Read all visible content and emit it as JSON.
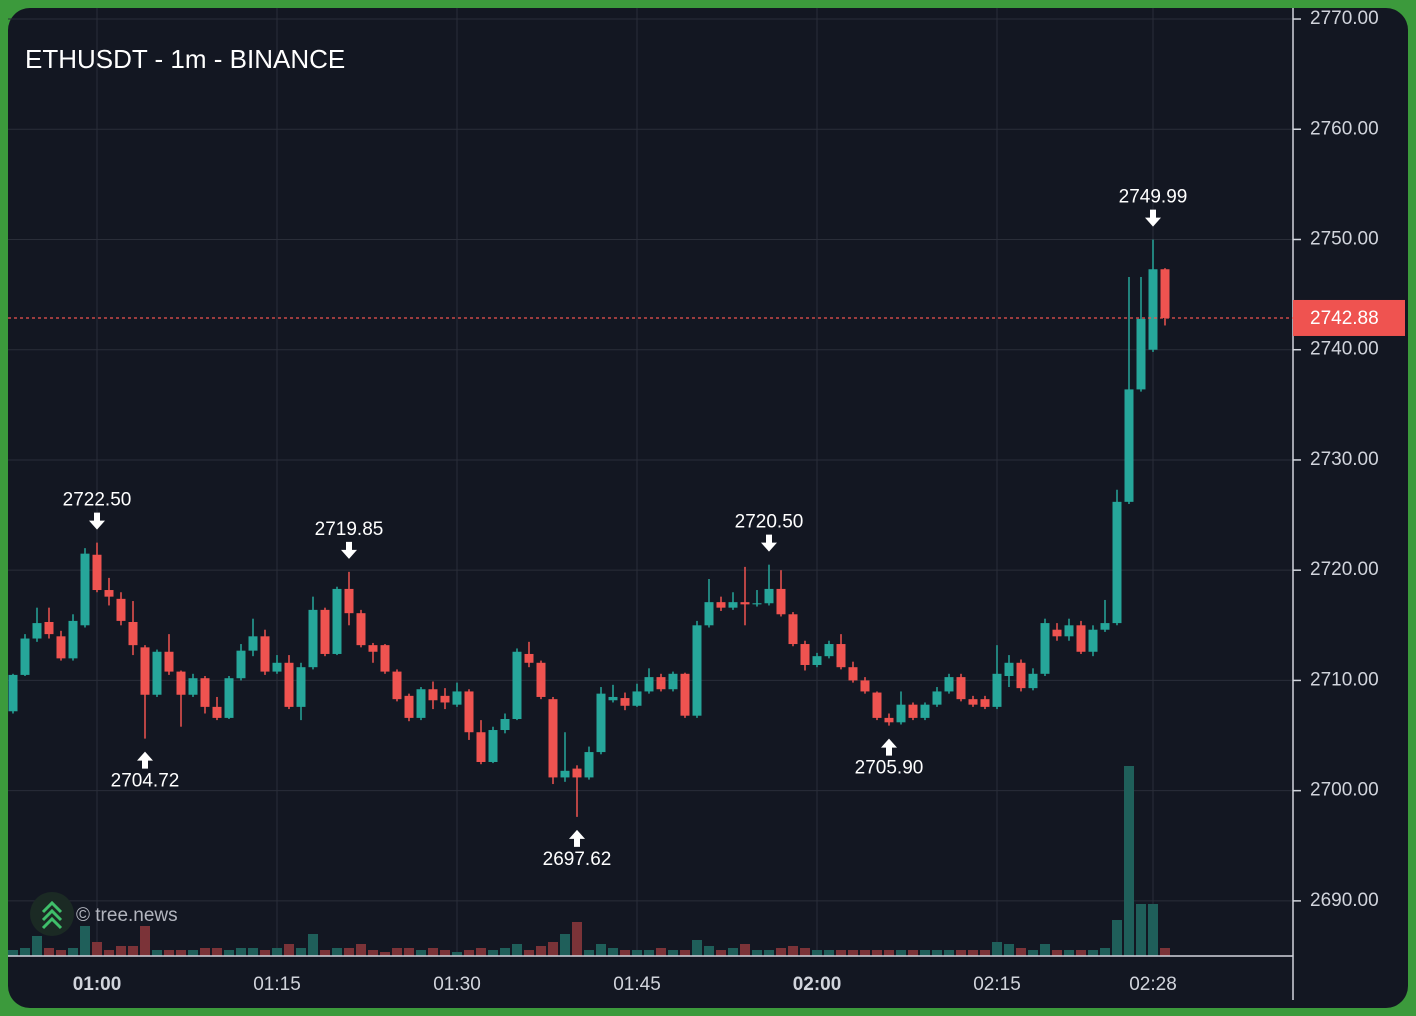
{
  "chart_data": {
    "type": "candlestick",
    "title": "ETHUSDT - 1m - BINANCE",
    "watermark": "© tree.news",
    "x": [
      null,
      null,
      null,
      null,
      null,
      null,
      null,
      "01:00",
      null,
      null,
      null,
      null,
      null,
      null,
      null,
      null,
      null,
      null,
      null,
      null,
      null,
      null,
      "01:15",
      null,
      null,
      null,
      null,
      null,
      null,
      null,
      null,
      null,
      null,
      null,
      null,
      null,
      null,
      "01:30",
      null,
      null,
      null,
      null,
      null,
      null,
      null,
      null,
      null,
      null,
      null,
      null,
      null,
      null,
      "01:45",
      null,
      null,
      null,
      null,
      null,
      null,
      null,
      null,
      null,
      null,
      null,
      null,
      null,
      null,
      "02:00",
      null,
      null,
      null,
      null,
      null,
      null,
      null,
      null,
      null,
      null,
      null,
      null,
      null,
      null,
      "02:15",
      null,
      null,
      null,
      null,
      null,
      null,
      null,
      null,
      null,
      null,
      null,
      null,
      "02:28",
      null
    ],
    "open": [
      2707.2,
      2710.5,
      2713.8,
      2715.3,
      2714.0,
      2712.0,
      2715.0,
      2721.4,
      2718.2,
      2717.4,
      2715.3,
      2713.0,
      2708.7,
      2712.6,
      2710.8,
      2708.7,
      2710.2,
      2707.6,
      2706.6,
      2710.2,
      2712.7,
      2714.0,
      2710.8,
      2711.6,
      2707.6,
      2711.2,
      2716.4,
      2712.4,
      2718.3,
      2716.1,
      2713.2,
      2713.2,
      2710.8,
      2708.6,
      2706.6,
      2709.2,
      2708.6,
      2707.8,
      2709.0,
      2705.3,
      2702.6,
      2705.5,
      2706.5,
      2712.4,
      2711.6,
      2708.3,
      2701.2,
      2702.0,
      2701.2,
      2703.5,
      2708.2,
      2708.4,
      2707.7,
      2709.0,
      2710.3,
      2709.2,
      2710.6,
      2706.8,
      2715.0,
      2717.1,
      2716.6,
      2717.1,
      2716.9,
      2717.0,
      2718.3,
      2716.0,
      2713.3,
      2711.4,
      2712.2,
      2713.3,
      2711.2,
      2710.0,
      2708.9,
      2706.6,
      2706.2,
      2707.8,
      2706.6,
      2707.8,
      2709.0,
      2710.3,
      2708.3,
      2708.3,
      2707.6,
      2710.4,
      2711.6,
      2709.3,
      2710.6,
      2714.6,
      2714.0,
      2715.0,
      2712.6,
      2714.6,
      2715.2,
      2726.2,
      2736.4,
      2740.0,
      2747.3
    ],
    "high": [
      2710.6,
      2714.2,
      2716.6,
      2716.6,
      2714.5,
      2716.0,
      2722.0,
      2722.5,
      2719.3,
      2718.0,
      2717.2,
      2713.2,
      2712.8,
      2714.2,
      2710.9,
      2710.6,
      2710.4,
      2708.5,
      2710.4,
      2713.3,
      2715.6,
      2714.6,
      2712.3,
      2712.3,
      2711.6,
      2717.6,
      2716.6,
      2718.5,
      2719.85,
      2716.4,
      2713.4,
      2713.3,
      2711.0,
      2708.8,
      2709.4,
      2709.9,
      2709.3,
      2709.8,
      2709.2,
      2706.4,
      2705.8,
      2707.0,
      2712.9,
      2713.5,
      2711.8,
      2708.5,
      2705.3,
      2702.3,
      2704.0,
      2709.4,
      2709.6,
      2708.9,
      2709.7,
      2711.1,
      2710.6,
      2710.8,
      2710.7,
      2715.4,
      2719.2,
      2717.6,
      2718.0,
      2720.3,
      2718.2,
      2720.5,
      2720.0,
      2716.2,
      2713.6,
      2712.5,
      2713.6,
      2714.2,
      2711.7,
      2710.3,
      2709.0,
      2707.0,
      2709.0,
      2708.0,
      2708.0,
      2709.4,
      2710.6,
      2710.6,
      2708.6,
      2708.6,
      2713.2,
      2712.3,
      2711.9,
      2711.1,
      2715.6,
      2715.2,
      2715.6,
      2715.4,
      2715.0,
      2717.3,
      2727.3,
      2746.6,
      2746.6,
      2749.99,
      2747.4
    ],
    "low": [
      2707.0,
      2710.4,
      2713.5,
      2713.8,
      2711.8,
      2711.8,
      2714.8,
      2718.0,
      2716.8,
      2715.0,
      2712.3,
      2704.72,
      2708.5,
      2710.5,
      2705.8,
      2708.5,
      2707.0,
      2706.4,
      2706.5,
      2710.0,
      2712.2,
      2710.5,
      2710.6,
      2707.4,
      2706.4,
      2711.0,
      2712.2,
      2712.3,
      2715.0,
      2713.0,
      2711.6,
      2710.6,
      2708.1,
      2706.3,
      2706.4,
      2707.4,
      2707.4,
      2707.6,
      2704.6,
      2702.4,
      2702.5,
      2705.2,
      2706.4,
      2711.2,
      2708.3,
      2700.6,
      2700.8,
      2697.62,
      2701.0,
      2703.3,
      2708.0,
      2707.3,
      2707.6,
      2708.8,
      2709.0,
      2709.0,
      2706.6,
      2706.6,
      2714.8,
      2716.3,
      2716.4,
      2715.0,
      2716.7,
      2716.8,
      2715.8,
      2713.1,
      2710.9,
      2711.2,
      2712.0,
      2711.0,
      2709.8,
      2708.8,
      2706.4,
      2705.9,
      2706.0,
      2706.4,
      2706.4,
      2707.6,
      2708.8,
      2708.1,
      2707.6,
      2707.4,
      2707.4,
      2709.4,
      2709.0,
      2709.1,
      2710.4,
      2713.6,
      2713.6,
      2712.4,
      2712.2,
      2714.4,
      2715.0,
      2726.0,
      2736.2,
      2739.8,
      2742.2
    ],
    "close": [
      2710.5,
      2713.8,
      2715.2,
      2714.2,
      2712.0,
      2715.4,
      2721.5,
      2718.2,
      2717.6,
      2715.4,
      2713.2,
      2708.7,
      2712.6,
      2710.8,
      2708.7,
      2710.2,
      2707.6,
      2706.6,
      2710.2,
      2712.7,
      2714.0,
      2710.8,
      2711.6,
      2707.6,
      2711.2,
      2716.4,
      2712.4,
      2718.3,
      2716.1,
      2713.2,
      2712.6,
      2710.8,
      2708.3,
      2706.6,
      2709.2,
      2708.2,
      2708.0,
      2709.0,
      2705.3,
      2702.6,
      2705.5,
      2706.5,
      2712.6,
      2711.6,
      2708.5,
      2701.2,
      2701.8,
      2701.2,
      2703.5,
      2708.8,
      2708.5,
      2707.7,
      2709.0,
      2710.3,
      2709.2,
      2710.6,
      2706.8,
      2715.0,
      2717.1,
      2716.6,
      2717.1,
      2716.9,
      2717.0,
      2718.3,
      2716.0,
      2713.3,
      2711.4,
      2712.2,
      2713.3,
      2711.2,
      2710.0,
      2709.0,
      2706.6,
      2706.2,
      2707.8,
      2706.6,
      2707.8,
      2709.0,
      2710.3,
      2708.3,
      2707.8,
      2707.6,
      2710.6,
      2711.6,
      2709.3,
      2710.6,
      2715.2,
      2714.0,
      2715.0,
      2712.6,
      2714.6,
      2715.2,
      2726.2,
      2736.4,
      2742.8,
      2747.3,
      2742.88
    ],
    "volume": [
      6,
      8,
      20,
      8,
      6,
      8,
      30,
      14,
      6,
      10,
      10,
      30,
      6,
      6,
      6,
      6,
      8,
      8,
      6,
      8,
      8,
      6,
      8,
      12,
      8,
      22,
      6,
      8,
      8,
      12,
      6,
      4,
      8,
      8,
      6,
      8,
      6,
      4,
      6,
      8,
      6,
      8,
      12,
      6,
      10,
      14,
      22,
      34,
      6,
      12,
      8,
      6,
      6,
      6,
      8,
      6,
      6,
      16,
      10,
      6,
      8,
      12,
      6,
      6,
      8,
      10,
      8,
      6,
      6,
      6,
      6,
      6,
      6,
      6,
      6,
      6,
      6,
      6,
      6,
      6,
      6,
      6,
      14,
      12,
      8,
      6,
      12,
      6,
      6,
      6,
      6,
      8,
      36,
      190,
      52,
      52,
      8
    ],
    "last_price_label": "2742.88",
    "annotations": [
      {
        "value": 2722.5,
        "label": "2722.50"
      },
      {
        "value": 2704.72,
        "label": "2704.72"
      },
      {
        "value": 2719.85,
        "label": "2719.85"
      },
      {
        "value": 2697.62,
        "label": "2697.62"
      },
      {
        "value": 2720.5,
        "label": "2720.50"
      },
      {
        "value": 2705.9,
        "label": "2705.90"
      },
      {
        "value": 2749.99,
        "label": "2749.99"
      }
    ],
    "ylim": [
      2685,
      2771
    ],
    "yticks": [
      {
        "value": 2690,
        "label": "2690.00"
      },
      {
        "value": 2700,
        "label": "2700.00"
      },
      {
        "value": 2710,
        "label": "2710.00"
      },
      {
        "value": 2720,
        "label": "2720.00"
      },
      {
        "value": 2730,
        "label": "2730.00"
      },
      {
        "value": 2740,
        "label": "2740.00"
      },
      {
        "value": 2750,
        "label": "2750.00"
      },
      {
        "value": 2760,
        "label": "2760.00"
      },
      {
        "value": 2770,
        "label": "2770.00"
      }
    ],
    "grid": true,
    "up_color": "#26a69a",
    "down_color": "#ef5350",
    "volume_up_color": "#1f5f5a",
    "volume_down_color": "#7b3338"
  }
}
